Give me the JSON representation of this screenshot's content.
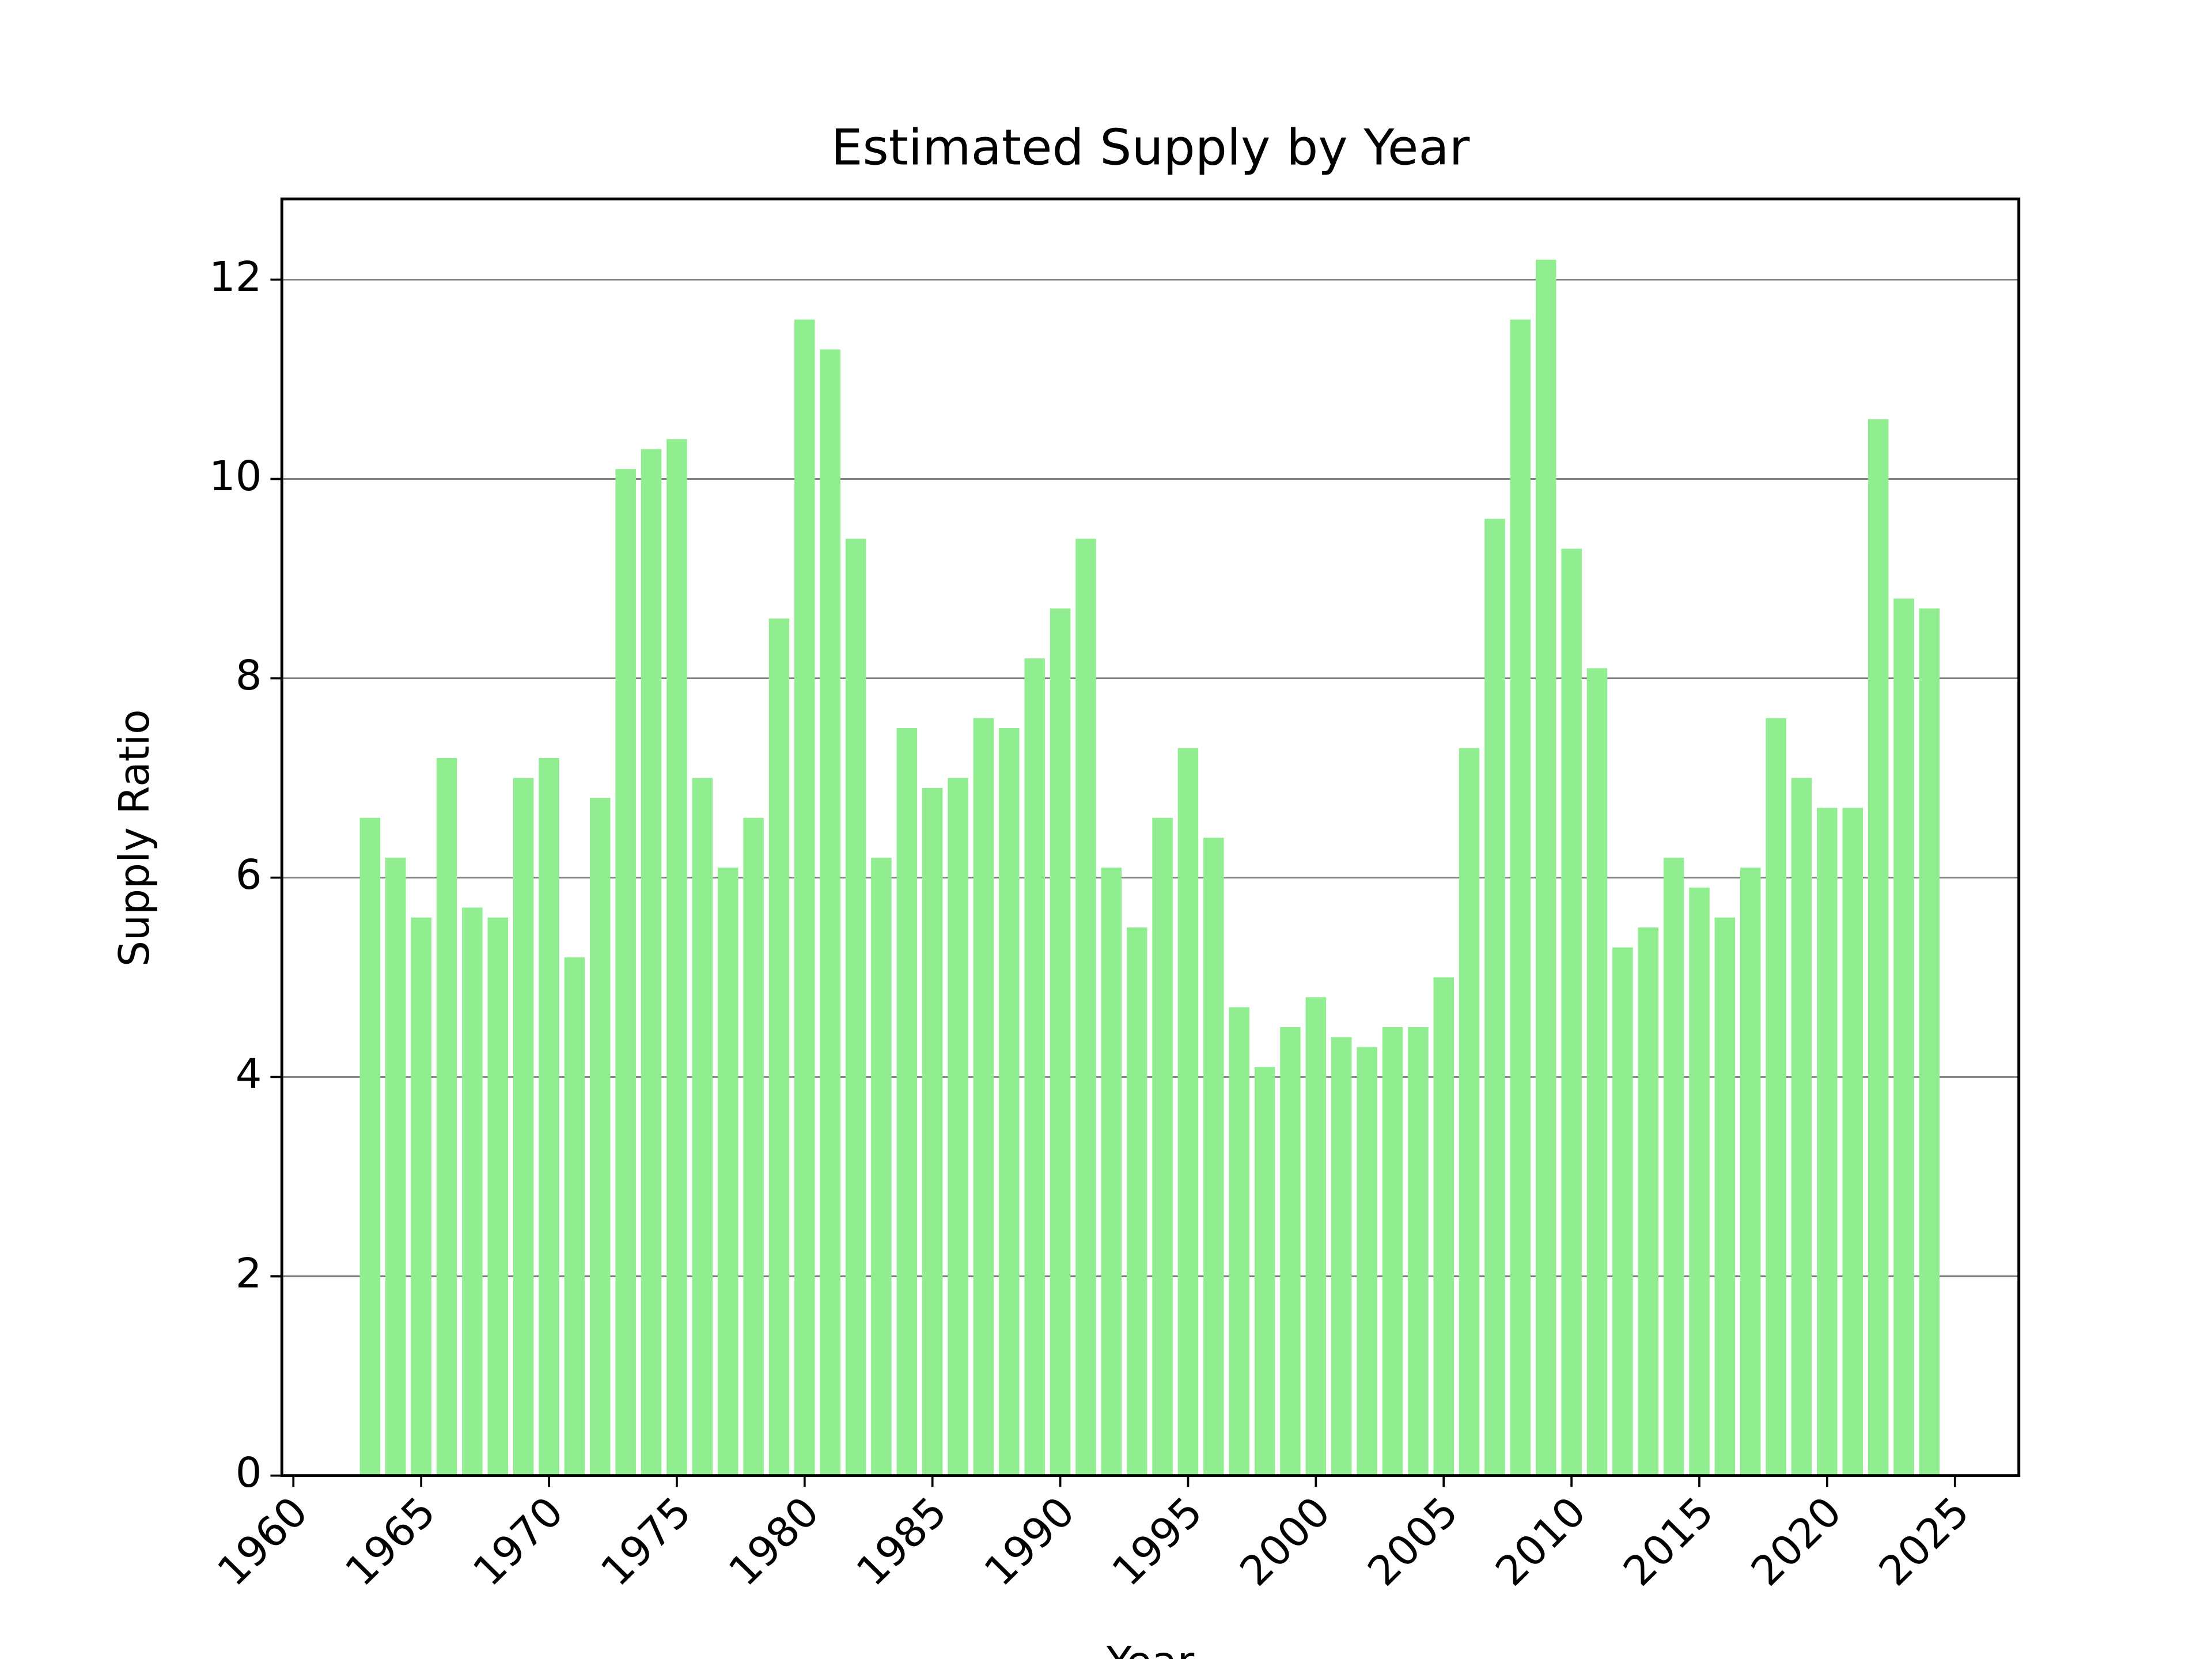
{
  "chart_data": {
    "type": "bar",
    "title": "Estimated Supply by Year",
    "xlabel": "Year",
    "ylabel": "Supply Ratio",
    "x": [
      1963,
      1964,
      1965,
      1966,
      1967,
      1968,
      1969,
      1970,
      1971,
      1972,
      1973,
      1974,
      1975,
      1976,
      1977,
      1978,
      1979,
      1980,
      1981,
      1982,
      1983,
      1984,
      1985,
      1986,
      1987,
      1988,
      1989,
      1990,
      1991,
      1992,
      1993,
      1994,
      1995,
      1996,
      1997,
      1998,
      1999,
      2000,
      2001,
      2002,
      2003,
      2004,
      2005,
      2006,
      2007,
      2008,
      2009,
      2010,
      2011,
      2012,
      2013,
      2014,
      2015,
      2016,
      2017,
      2018,
      2019,
      2020,
      2021,
      2022,
      2023,
      2024
    ],
    "values": [
      6.6,
      6.2,
      5.6,
      7.2,
      5.7,
      5.6,
      7.0,
      7.2,
      5.2,
      6.8,
      10.1,
      10.3,
      10.4,
      7.0,
      6.1,
      6.6,
      8.6,
      11.6,
      11.3,
      9.4,
      6.2,
      7.5,
      6.9,
      7.0,
      7.6,
      7.5,
      8.2,
      8.7,
      9.4,
      6.1,
      5.5,
      6.6,
      7.3,
      6.4,
      4.7,
      4.1,
      4.5,
      4.8,
      4.4,
      4.3,
      4.5,
      4.5,
      5.0,
      7.3,
      9.6,
      11.6,
      12.2,
      9.3,
      8.1,
      5.3,
      5.5,
      6.2,
      5.9,
      5.6,
      6.1,
      7.6,
      7.0,
      6.7,
      6.7,
      10.6,
      8.8,
      8.7
    ],
    "color": "#90ee90",
    "xlim": [
      1959.55,
      2027.5
    ],
    "xticks": [
      1960,
      1965,
      1970,
      1975,
      1980,
      1985,
      1990,
      1995,
      2000,
      2005,
      2010,
      2015,
      2020,
      2025
    ],
    "ylim": [
      0,
      12.81
    ],
    "yticks": [
      0,
      2,
      4,
      6,
      8,
      10,
      12
    ],
    "grid": true
  }
}
